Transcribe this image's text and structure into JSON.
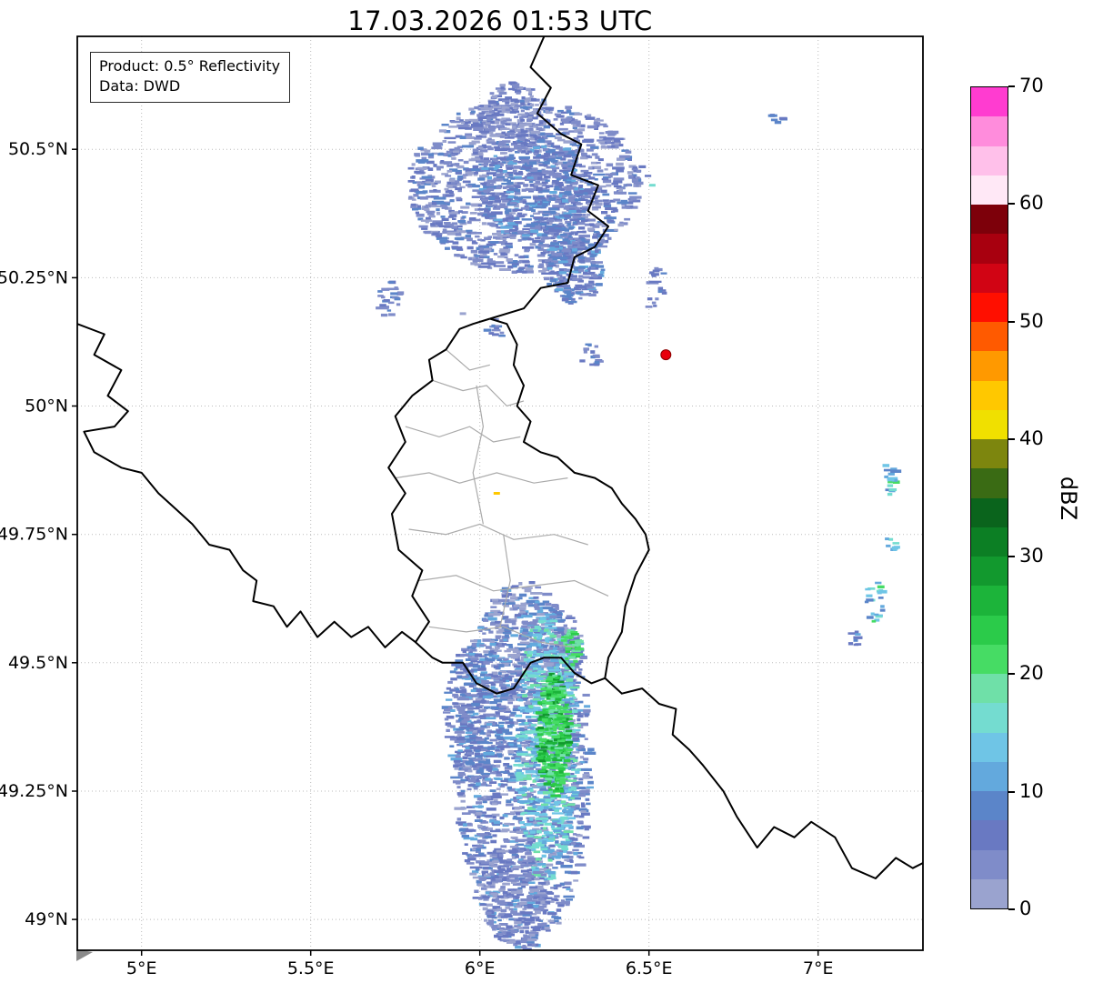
{
  "title": "17.03.2026 01:53 UTC",
  "info_box": {
    "product": "Product: 0.5° Reflectivity",
    "source": "Data: DWD"
  },
  "colorbar": {
    "label": "dBZ",
    "min": 0,
    "max": 70,
    "step": 2.5,
    "ticks": [
      0,
      10,
      20,
      30,
      40,
      50,
      60,
      70
    ],
    "colors": [
      "#9aa3cf",
      "#7f8cc9",
      "#6979c2",
      "#5b85c9",
      "#63a9dd",
      "#6fc5e6",
      "#74dcd0",
      "#6fe0a8",
      "#46dc64",
      "#2bcb4a",
      "#1cb43a",
      "#12992e",
      "#0c7f24",
      "#0a641c",
      "#3a6b14",
      "#7d860e",
      "#f0e000",
      "#ffc800",
      "#ff9900",
      "#ff5a00",
      "#ff0f00",
      "#d10414",
      "#a8000f",
      "#7d000a",
      "#ffe8f6",
      "#ffc0ea",
      "#ff8cdc",
      "#ff3cd0"
    ]
  },
  "axes": {
    "x_ticks": [
      {
        "value": 5.0,
        "label": "5°E"
      },
      {
        "value": 5.5,
        "label": "5.5°E"
      },
      {
        "value": 6.0,
        "label": "6°E"
      },
      {
        "value": 6.5,
        "label": "6.5°E"
      },
      {
        "value": 7.0,
        "label": "7°E"
      }
    ],
    "y_ticks": [
      {
        "value": 49.0,
        "label": "49°N"
      },
      {
        "value": 49.25,
        "label": "49.25°N"
      },
      {
        "value": 49.5,
        "label": "49.5°N"
      },
      {
        "value": 49.75,
        "label": "49.75°N"
      },
      {
        "value": 50.0,
        "label": "50°N"
      },
      {
        "value": 50.25,
        "label": "50.25°N"
      },
      {
        "value": 50.5,
        "label": "50.5°N"
      }
    ]
  },
  "map": {
    "extent": {
      "lon_min": 4.81,
      "lon_max": 7.31,
      "lat_min": 48.94,
      "lat_max": 50.72
    },
    "grid_color": "#bbbbbb",
    "border_color": "#000000",
    "admin_color": "#aaaaaa",
    "radar_site": {
      "lon": 6.55,
      "lat": 50.1,
      "color": "#e8000b",
      "edge": "#8c0000"
    },
    "borders_country": [
      [
        [
          6.19,
          50.72
        ],
        [
          6.15,
          50.66
        ],
        [
          6.21,
          50.62
        ],
        [
          6.17,
          50.57
        ],
        [
          6.24,
          50.53
        ],
        [
          6.3,
          50.51
        ],
        [
          6.27,
          50.45
        ],
        [
          6.35,
          50.43
        ],
        [
          6.32,
          50.38
        ],
        [
          6.38,
          50.35
        ],
        [
          6.34,
          50.31
        ],
        [
          6.28,
          50.29
        ],
        [
          6.26,
          50.24
        ],
        [
          6.18,
          50.23
        ],
        [
          6.13,
          50.19
        ],
        [
          6.03,
          50.17
        ]
      ],
      [
        [
          6.03,
          50.17
        ],
        [
          6.08,
          50.16
        ],
        [
          6.11,
          50.12
        ],
        [
          6.1,
          50.08
        ],
        [
          6.13,
          50.04
        ],
        [
          6.11,
          50.0
        ],
        [
          6.15,
          49.97
        ],
        [
          6.13,
          49.93
        ],
        [
          6.18,
          49.91
        ],
        [
          6.23,
          49.9
        ],
        [
          6.28,
          49.87
        ],
        [
          6.34,
          49.86
        ],
        [
          6.39,
          49.84
        ],
        [
          6.42,
          49.81
        ],
        [
          6.46,
          49.78
        ],
        [
          6.49,
          49.75
        ],
        [
          6.5,
          49.72
        ],
        [
          6.46,
          49.67
        ],
        [
          6.43,
          49.61
        ],
        [
          6.42,
          49.56
        ],
        [
          6.38,
          49.51
        ],
        [
          6.37,
          49.47
        ],
        [
          6.33,
          49.46
        ],
        [
          6.28,
          49.48
        ],
        [
          6.24,
          49.51
        ],
        [
          6.19,
          49.51
        ],
        [
          6.15,
          49.5
        ],
        [
          6.1,
          49.45
        ],
        [
          6.05,
          49.44
        ],
        [
          5.99,
          49.46
        ],
        [
          5.95,
          49.5
        ],
        [
          5.89,
          49.5
        ],
        [
          5.86,
          49.51
        ],
        [
          5.81,
          49.54
        ],
        [
          5.85,
          49.58
        ],
        [
          5.8,
          49.63
        ],
        [
          5.83,
          49.68
        ],
        [
          5.76,
          49.72
        ],
        [
          5.74,
          49.79
        ],
        [
          5.78,
          49.83
        ],
        [
          5.73,
          49.88
        ],
        [
          5.78,
          49.93
        ],
        [
          5.75,
          49.98
        ],
        [
          5.8,
          50.02
        ],
        [
          5.86,
          50.05
        ],
        [
          5.85,
          50.09
        ],
        [
          5.9,
          50.11
        ],
        [
          5.94,
          50.15
        ],
        [
          5.98,
          50.16
        ],
        [
          6.03,
          50.17
        ]
      ],
      [
        [
          4.81,
          50.16
        ],
        [
          4.89,
          50.14
        ],
        [
          4.86,
          50.1
        ],
        [
          4.94,
          50.07
        ],
        [
          4.9,
          50.02
        ],
        [
          4.96,
          49.99
        ],
        [
          4.92,
          49.96
        ],
        [
          4.83,
          49.95
        ],
        [
          4.86,
          49.91
        ],
        [
          4.94,
          49.88
        ],
        [
          5.0,
          49.87
        ],
        [
          5.05,
          49.83
        ],
        [
          5.1,
          49.8
        ],
        [
          5.15,
          49.77
        ],
        [
          5.2,
          49.73
        ],
        [
          5.26,
          49.72
        ],
        [
          5.3,
          49.68
        ],
        [
          5.34,
          49.66
        ],
        [
          5.33,
          49.62
        ],
        [
          5.39,
          49.61
        ],
        [
          5.43,
          49.57
        ],
        [
          5.47,
          49.6
        ],
        [
          5.52,
          49.55
        ],
        [
          5.57,
          49.58
        ],
        [
          5.62,
          49.55
        ],
        [
          5.67,
          49.57
        ],
        [
          5.72,
          49.53
        ],
        [
          5.77,
          49.56
        ],
        [
          5.81,
          49.54
        ]
      ],
      [
        [
          6.37,
          49.47
        ],
        [
          6.42,
          49.44
        ],
        [
          6.48,
          49.45
        ],
        [
          6.53,
          49.42
        ],
        [
          6.58,
          49.41
        ],
        [
          6.57,
          49.36
        ],
        [
          6.62,
          49.33
        ],
        [
          6.66,
          49.3
        ],
        [
          6.72,
          49.25
        ],
        [
          6.76,
          49.2
        ],
        [
          6.82,
          49.14
        ],
        [
          6.87,
          49.18
        ],
        [
          6.93,
          49.16
        ],
        [
          6.98,
          49.19
        ],
        [
          7.05,
          49.16
        ],
        [
          7.1,
          49.1
        ],
        [
          7.17,
          49.08
        ],
        [
          7.23,
          49.12
        ],
        [
          7.28,
          49.1
        ],
        [
          7.31,
          49.11
        ]
      ]
    ],
    "borders_admin": [
      [
        [
          5.86,
          50.05
        ],
        [
          5.95,
          50.03
        ],
        [
          6.02,
          50.04
        ],
        [
          6.08,
          50.0
        ],
        [
          6.13,
          50.01
        ]
      ],
      [
        [
          5.78,
          49.96
        ],
        [
          5.88,
          49.94
        ],
        [
          5.97,
          49.96
        ],
        [
          6.04,
          49.93
        ],
        [
          6.12,
          49.94
        ]
      ],
      [
        [
          5.75,
          49.86
        ],
        [
          5.85,
          49.87
        ],
        [
          5.94,
          49.85
        ],
        [
          6.05,
          49.87
        ],
        [
          6.16,
          49.85
        ],
        [
          6.26,
          49.86
        ]
      ],
      [
        [
          5.79,
          49.76
        ],
        [
          5.9,
          49.75
        ],
        [
          6.0,
          49.77
        ],
        [
          6.1,
          49.74
        ],
        [
          6.22,
          49.75
        ],
        [
          6.32,
          49.73
        ]
      ],
      [
        [
          5.82,
          49.66
        ],
        [
          5.93,
          49.67
        ],
        [
          6.04,
          49.64
        ],
        [
          6.16,
          49.65
        ],
        [
          6.28,
          49.66
        ],
        [
          6.38,
          49.63
        ]
      ],
      [
        [
          5.85,
          49.57
        ],
        [
          5.96,
          49.56
        ],
        [
          6.07,
          49.57
        ],
        [
          6.18,
          49.54
        ],
        [
          6.28,
          49.53
        ]
      ],
      [
        [
          5.99,
          50.04
        ],
        [
          6.01,
          49.96
        ],
        [
          5.98,
          49.87
        ],
        [
          6.01,
          49.77
        ]
      ],
      [
        [
          6.07,
          49.75
        ],
        [
          6.09,
          49.66
        ],
        [
          6.06,
          49.57
        ]
      ],
      [
        [
          5.9,
          50.11
        ],
        [
          5.97,
          50.07
        ],
        [
          6.03,
          50.08
        ]
      ]
    ],
    "echo_clusters": [
      {
        "name": "north-main",
        "lon": 6.13,
        "lat": 50.43,
        "rx": 0.34,
        "ry": 0.17,
        "count": 1250,
        "seed": 1001,
        "levels": [
          [
            0,
            0.22
          ],
          [
            1,
            0.34
          ],
          [
            2,
            0.28
          ],
          [
            3,
            0.16
          ]
        ]
      },
      {
        "name": "north-core",
        "lon": 6.16,
        "lat": 50.42,
        "rx": 0.17,
        "ry": 0.1,
        "count": 420,
        "seed": 1078,
        "levels": [
          [
            1,
            0.28
          ],
          [
            2,
            0.34
          ],
          [
            3,
            0.26
          ],
          [
            4,
            0.12
          ]
        ]
      },
      {
        "name": "north-top",
        "lon": 6.1,
        "lat": 50.56,
        "rx": 0.1,
        "ry": 0.07,
        "count": 150,
        "seed": 1155,
        "levels": [
          [
            0,
            0.3
          ],
          [
            1,
            0.4
          ],
          [
            2,
            0.3
          ]
        ]
      },
      {
        "name": "north-southeast",
        "lon": 6.28,
        "lat": 50.27,
        "rx": 0.09,
        "ry": 0.07,
        "count": 220,
        "seed": 1232,
        "levels": [
          [
            1,
            0.3
          ],
          [
            2,
            0.3
          ],
          [
            3,
            0.25
          ],
          [
            4,
            0.15
          ]
        ]
      },
      {
        "name": "west-specks",
        "lon": 5.73,
        "lat": 50.21,
        "rx": 0.04,
        "ry": 0.035,
        "count": 25,
        "seed": 1309,
        "levels": [
          [
            1,
            0.4
          ],
          [
            2,
            0.35
          ],
          [
            3,
            0.25
          ]
        ]
      },
      {
        "name": "mid-specks-1",
        "lon": 6.05,
        "lat": 50.15,
        "rx": 0.03,
        "ry": 0.02,
        "count": 12,
        "seed": 1386,
        "levels": [
          [
            1,
            0.4
          ],
          [
            2,
            0.35
          ],
          [
            3,
            0.25
          ]
        ]
      },
      {
        "name": "mid-specks-2",
        "lon": 6.33,
        "lat": 50.1,
        "rx": 0.035,
        "ry": 0.025,
        "count": 16,
        "seed": 1463,
        "levels": [
          [
            1,
            0.4
          ],
          [
            2,
            0.35
          ],
          [
            3,
            0.25
          ]
        ]
      },
      {
        "name": "mid-specks-3",
        "lon": 6.52,
        "lat": 50.23,
        "rx": 0.03,
        "ry": 0.05,
        "count": 18,
        "seed": 1540,
        "levels": [
          [
            1,
            0.4
          ],
          [
            2,
            0.35
          ],
          [
            3,
            0.25
          ]
        ]
      },
      {
        "name": "ne-dash",
        "lon": 6.88,
        "lat": 50.56,
        "rx": 0.02,
        "ry": 0.01,
        "count": 6,
        "seed": 1617,
        "levels": [
          [
            2,
            0.5
          ],
          [
            3,
            0.5
          ]
        ]
      },
      {
        "name": "n-dash",
        "lon": 6.47,
        "lat": 50.45,
        "rx": 0.03,
        "ry": 0.02,
        "count": 8,
        "seed": 1694,
        "levels": [
          [
            1,
            0.5
          ],
          [
            2,
            0.5
          ]
        ]
      },
      {
        "name": "south-main",
        "lon": 6.13,
        "lat": 49.3,
        "rx": 0.2,
        "ry": 0.36,
        "count": 1500,
        "seed": 1771,
        "levels": [
          [
            0,
            0.18
          ],
          [
            1,
            0.28
          ],
          [
            2,
            0.24
          ],
          [
            3,
            0.2
          ],
          [
            4,
            0.1
          ]
        ]
      },
      {
        "name": "south-upper",
        "lon": 6.17,
        "lat": 49.52,
        "rx": 0.14,
        "ry": 0.1,
        "count": 300,
        "seed": 1848,
        "levels": [
          [
            0,
            0.18
          ],
          [
            1,
            0.28
          ],
          [
            2,
            0.24
          ],
          [
            3,
            0.2
          ],
          [
            4,
            0.1
          ]
        ]
      },
      {
        "name": "south-west-lobe",
        "lon": 5.99,
        "lat": 49.4,
        "rx": 0.09,
        "ry": 0.14,
        "count": 280,
        "seed": 1925,
        "levels": [
          [
            1,
            0.3
          ],
          [
            2,
            0.3
          ],
          [
            3,
            0.25
          ],
          [
            4,
            0.15
          ]
        ]
      },
      {
        "name": "south-cyan",
        "lon": 6.2,
        "lat": 49.33,
        "rx": 0.09,
        "ry": 0.26,
        "count": 520,
        "seed": 2002,
        "levels": [
          [
            4,
            0.25
          ],
          [
            5,
            0.3
          ],
          [
            6,
            0.3
          ],
          [
            7,
            0.15
          ]
        ]
      },
      {
        "name": "south-green-core",
        "lon": 6.22,
        "lat": 49.36,
        "rx": 0.045,
        "ry": 0.12,
        "count": 300,
        "seed": 2079,
        "levels": [
          [
            7,
            0.2
          ],
          [
            8,
            0.3
          ],
          [
            9,
            0.25
          ],
          [
            10,
            0.15
          ],
          [
            11,
            0.1
          ]
        ]
      },
      {
        "name": "south-green-top",
        "lon": 6.27,
        "lat": 49.53,
        "rx": 0.025,
        "ry": 0.035,
        "count": 40,
        "seed": 2156,
        "levels": [
          [
            7,
            0.4
          ],
          [
            8,
            0.4
          ],
          [
            9,
            0.2
          ]
        ]
      },
      {
        "name": "south-tail",
        "lon": 6.1,
        "lat": 49.05,
        "rx": 0.1,
        "ry": 0.1,
        "count": 200,
        "seed": 2233,
        "levels": [
          [
            0,
            0.3
          ],
          [
            1,
            0.35
          ],
          [
            2,
            0.35
          ]
        ]
      },
      {
        "name": "east-1",
        "lon": 7.21,
        "lat": 49.86,
        "rx": 0.025,
        "ry": 0.035,
        "count": 16,
        "seed": 2310,
        "levels": [
          [
            3,
            0.2
          ],
          [
            4,
            0.2
          ],
          [
            5,
            0.25
          ],
          [
            6,
            0.2
          ],
          [
            8,
            0.15
          ]
        ]
      },
      {
        "name": "east-2",
        "lon": 7.22,
        "lat": 49.73,
        "rx": 0.02,
        "ry": 0.02,
        "count": 8,
        "seed": 2387,
        "levels": [
          [
            4,
            0.4
          ],
          [
            5,
            0.3
          ],
          [
            6,
            0.3
          ]
        ]
      },
      {
        "name": "east-3",
        "lon": 7.17,
        "lat": 49.62,
        "rx": 0.03,
        "ry": 0.045,
        "count": 22,
        "seed": 2464,
        "levels": [
          [
            3,
            0.2
          ],
          [
            4,
            0.2
          ],
          [
            5,
            0.2
          ],
          [
            6,
            0.2
          ],
          [
            8,
            0.1
          ],
          [
            17,
            0.1
          ]
        ]
      },
      {
        "name": "east-4",
        "lon": 7.11,
        "lat": 49.55,
        "rx": 0.02,
        "ry": 0.02,
        "count": 8,
        "seed": 2541,
        "levels": [
          [
            2,
            0.4
          ],
          [
            3,
            0.3
          ],
          [
            4,
            0.3
          ]
        ]
      }
    ],
    "echo_specks": [
      {
        "lon": 6.51,
        "lat": 50.43,
        "level": 6
      },
      {
        "lon": 6.05,
        "lat": 49.83,
        "level": 17
      },
      {
        "lon": 5.95,
        "lat": 50.18,
        "level": 0
      }
    ]
  }
}
